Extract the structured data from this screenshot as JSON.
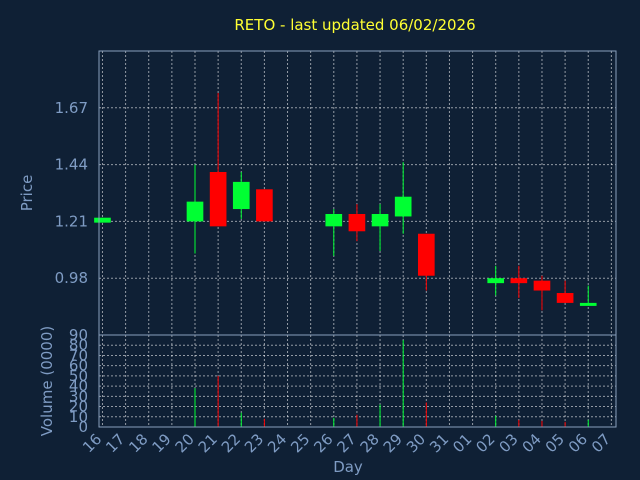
{
  "chart_data": {
    "type": "candlestick",
    "title": "RETO - last updated 06/02/2026",
    "xlabel": "Day",
    "price_panel": {
      "ylabel": "Price",
      "yticks": [
        "0.98",
        "1.21",
        "1.44",
        "1.67"
      ],
      "ylim": [
        0.75,
        1.9
      ]
    },
    "volume_panel": {
      "ylabel": "Volume (0000)",
      "yticks": [
        "0",
        "10",
        "20",
        "30",
        "40",
        "50",
        "60",
        "70",
        "80",
        "90"
      ],
      "ylim": [
        0,
        90
      ]
    },
    "x_tick_labels": [
      "16",
      "17",
      "18",
      "19",
      "20",
      "21",
      "22",
      "23",
      "24",
      "25",
      "26",
      "27",
      "28",
      "29",
      "30",
      "31",
      "01",
      "02",
      "03",
      "04",
      "05",
      "06",
      "07"
    ],
    "grid": true,
    "up_color": "#00ff33",
    "down_color": "#ff0000",
    "candles": [
      {
        "day": "16",
        "open": 1.205,
        "close": 1.225,
        "high": 1.225,
        "low": 1.205,
        "volume": 0
      },
      {
        "day": "20",
        "open": 1.21,
        "close": 1.29,
        "high": 1.44,
        "low": 1.08,
        "volume": 38
      },
      {
        "day": "21",
        "open": 1.41,
        "close": 1.19,
        "high": 1.73,
        "low": 1.19,
        "volume": 50
      },
      {
        "day": "22",
        "open": 1.26,
        "close": 1.37,
        "high": 1.41,
        "low": 1.22,
        "volume": 14
      },
      {
        "day": "23",
        "open": 1.34,
        "close": 1.21,
        "high": 1.34,
        "low": 1.21,
        "volume": 8
      },
      {
        "day": "26",
        "open": 1.19,
        "close": 1.24,
        "high": 1.26,
        "low": 1.07,
        "volume": 9
      },
      {
        "day": "27",
        "open": 1.24,
        "close": 1.17,
        "high": 1.28,
        "low": 1.13,
        "volume": 12
      },
      {
        "day": "28",
        "open": 1.19,
        "close": 1.24,
        "high": 1.28,
        "low": 1.09,
        "volume": 22
      },
      {
        "day": "29",
        "open": 1.23,
        "close": 1.31,
        "high": 1.45,
        "low": 1.16,
        "volume": 85
      },
      {
        "day": "30",
        "open": 1.16,
        "close": 0.99,
        "high": 1.16,
        "low": 0.93,
        "volume": 24
      },
      {
        "day": "02",
        "open": 0.96,
        "close": 0.98,
        "high": 1.03,
        "low": 0.91,
        "volume": 11
      },
      {
        "day": "03",
        "open": 0.98,
        "close": 0.96,
        "high": 1.03,
        "low": 0.9,
        "volume": 7
      },
      {
        "day": "04",
        "open": 0.97,
        "close": 0.93,
        "high": 0.99,
        "low": 0.85,
        "volume": 6
      },
      {
        "day": "05",
        "open": 0.92,
        "close": 0.88,
        "high": 0.97,
        "low": 0.88,
        "volume": 5
      },
      {
        "day": "06",
        "open": 0.87,
        "close": 0.88,
        "high": 0.95,
        "low": 0.87,
        "volume": 7
      }
    ]
  }
}
